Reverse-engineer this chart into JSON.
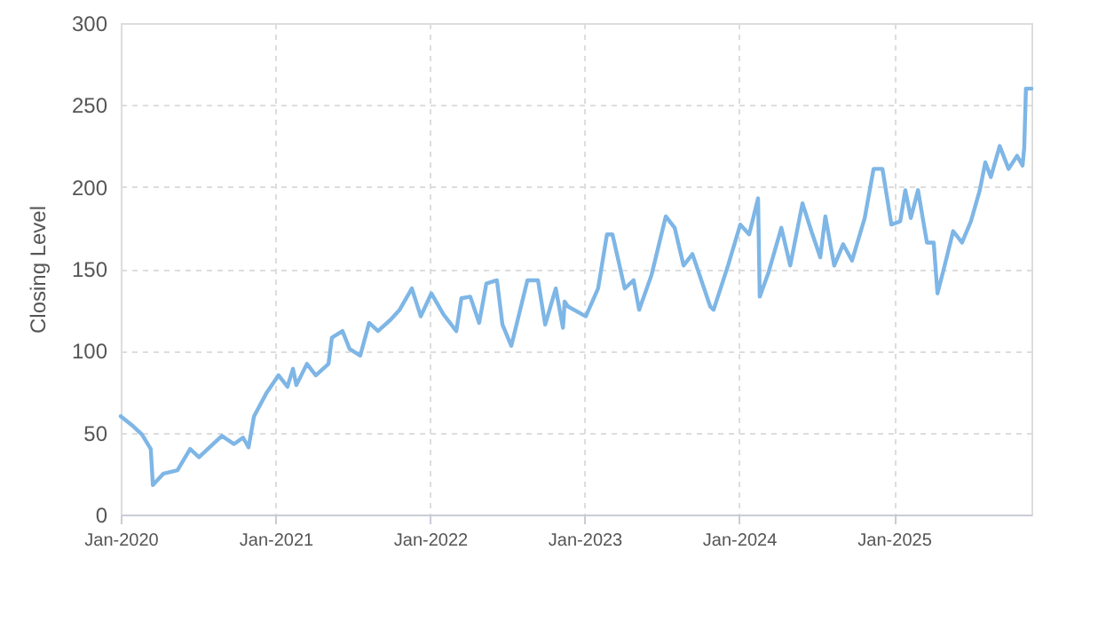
{
  "chart_data": {
    "type": "line",
    "ylabel": "Closing Level",
    "x": [
      "2020-01-01",
      "2020-01-30",
      "2020-02-20",
      "2020-03-12",
      "2020-03-17",
      "2020-04-11",
      "2020-05-14",
      "2020-06-13",
      "2020-07-04",
      "2020-08-06",
      "2020-08-27",
      "2020-09-25",
      "2020-10-16",
      "2020-10-29",
      "2020-11-11",
      "2020-12-10",
      "2021-01-08",
      "2021-01-29",
      "2021-02-11",
      "2021-02-19",
      "2021-03-16",
      "2021-04-06",
      "2021-05-06",
      "2021-05-14",
      "2021-06-08",
      "2021-06-25",
      "2021-07-20",
      "2021-08-10",
      "2021-08-31",
      "2021-09-30",
      "2021-10-21",
      "2021-11-19",
      "2021-12-10",
      "2022-01-04",
      "2022-02-02",
      "2022-03-04",
      "2022-03-16",
      "2022-04-06",
      "2022-04-27",
      "2022-05-14",
      "2022-06-08",
      "2022-06-21",
      "2022-07-12",
      "2022-08-19",
      "2022-09-13",
      "2022-09-30",
      "2022-10-25",
      "2022-11-11",
      "2022-11-15",
      "2022-11-23",
      "2023-01-04",
      "2023-02-02",
      "2023-02-23",
      "2023-03-08",
      "2023-04-06",
      "2023-04-27",
      "2023-05-10",
      "2023-06-08",
      "2023-07-12",
      "2023-08-02",
      "2023-08-23",
      "2023-09-13",
      "2023-10-25",
      "2023-11-02",
      "2023-12-06",
      "2024-01-04",
      "2024-01-25",
      "2024-02-15",
      "2024-02-19",
      "2024-03-11",
      "2024-04-10",
      "2024-05-01",
      "2024-05-30",
      "2024-06-20",
      "2024-07-11",
      "2024-07-23",
      "2024-08-13",
      "2024-09-03",
      "2024-09-24",
      "2024-10-24",
      "2024-11-14",
      "2024-12-05",
      "2024-12-26",
      "2025-01-16",
      "2025-01-28",
      "2025-02-10",
      "2025-02-27",
      "2025-03-20",
      "2025-04-05",
      "2025-04-14",
      "2025-05-01",
      "2025-05-21",
      "2025-06-11",
      "2025-07-02",
      "2025-07-23",
      "2025-08-05",
      "2025-08-18",
      "2025-09-08",
      "2025-09-29",
      "2025-10-19",
      "2025-11-01",
      "2025-11-05",
      "2025-11-09",
      "2025-11-22"
    ],
    "series": [
      {
        "color": "#7eb6e6",
        "values": [
          60,
          54,
          49,
          40,
          18,
          25,
          27,
          40,
          35,
          43,
          48,
          43,
          47,
          41,
          60,
          74,
          85,
          78,
          89,
          79,
          92,
          85,
          92,
          108,
          112,
          101,
          97,
          117,
          112,
          119,
          125,
          138,
          121,
          135,
          122,
          112,
          132,
          133,
          117,
          141,
          143,
          116,
          103,
          143,
          143,
          116,
          138,
          114,
          130,
          127,
          121,
          138,
          171,
          171,
          138,
          143,
          125,
          146,
          182,
          175,
          152,
          159,
          127,
          125,
          152,
          177,
          171,
          193,
          133,
          148,
          175,
          152,
          190,
          173,
          157,
          182,
          152,
          165,
          155,
          181,
          211,
          211,
          177,
          179,
          198,
          181,
          198,
          166,
          166,
          135,
          152,
          173,
          166,
          179,
          198,
          215,
          206,
          225,
          211,
          219,
          213,
          224,
          260,
          260
        ]
      }
    ],
    "xlim": [
      "2020-01-01",
      "2025-11-22"
    ],
    "xticks": [
      {
        "value": "2020-01-01",
        "label": "Jan-2020"
      },
      {
        "value": "2021-01-01",
        "label": "Jan-2021"
      },
      {
        "value": "2022-01-01",
        "label": "Jan-2022"
      },
      {
        "value": "2023-01-01",
        "label": "Jan-2023"
      },
      {
        "value": "2024-01-01",
        "label": "Jan-2024"
      },
      {
        "value": "2025-01-01",
        "label": "Jan-2025"
      }
    ],
    "ylim": [
      0,
      300
    ],
    "yticks": [
      0,
      50,
      100,
      150,
      200,
      250,
      300
    ],
    "grid": true,
    "marker": "none",
    "line_style": "solid"
  }
}
